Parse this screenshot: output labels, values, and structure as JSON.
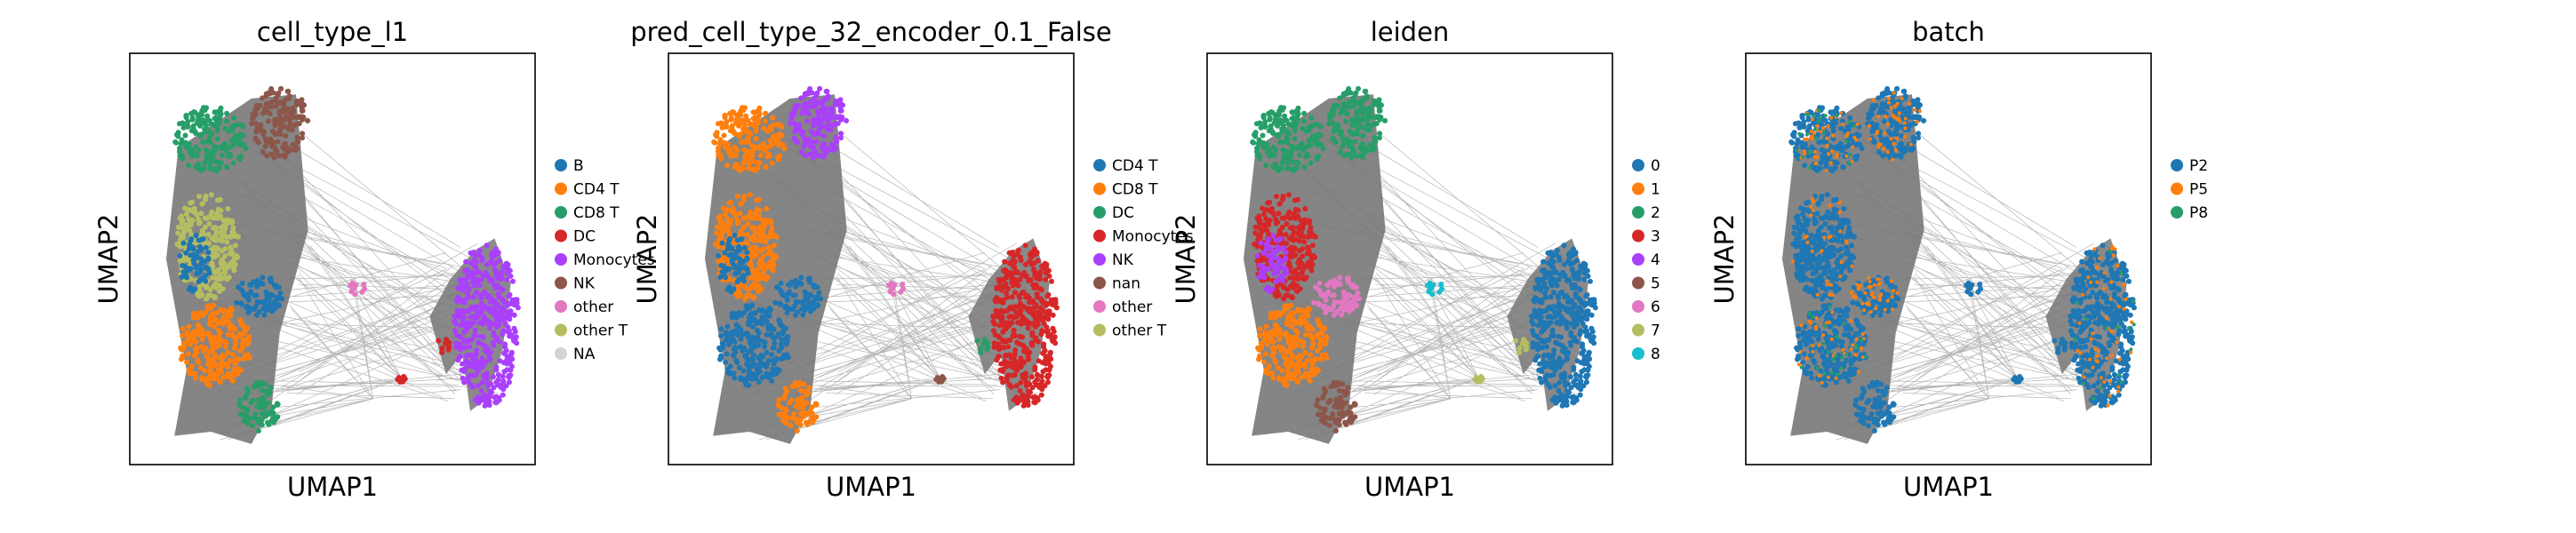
{
  "figure": {
    "panels": [
      {
        "title": "cell_type_l1",
        "xlabel": "UMAP1",
        "ylabel": "UMAP2",
        "legend": [
          "B",
          "CD4 T",
          "CD8 T",
          "DC",
          "Monocytes",
          "NK",
          "other",
          "other T",
          "NA"
        ]
      },
      {
        "title": "pred_cell_type_32_encoder_0.1_False",
        "xlabel": "UMAP1",
        "ylabel": "UMAP2",
        "legend": [
          "CD4 T",
          "CD8 T",
          "DC",
          "Monocytes",
          "NK",
          "nan",
          "other",
          "other T"
        ]
      },
      {
        "title": "leiden",
        "xlabel": "UMAP1",
        "ylabel": "UMAP2",
        "legend": [
          "0",
          "1",
          "2",
          "3",
          "4",
          "5",
          "6",
          "7",
          "8"
        ]
      },
      {
        "title": "batch",
        "xlabel": "UMAP1",
        "ylabel": "UMAP2",
        "legend": [
          "P2",
          "P5",
          "P8"
        ]
      }
    ]
  },
  "chart_data": [
    {
      "type": "scatter",
      "title": "cell_type_l1",
      "xlabel": "UMAP1",
      "ylabel": "UMAP2",
      "grid": false,
      "legend_position": "right",
      "series": [
        {
          "name": "B",
          "color": "#1f77b4"
        },
        {
          "name": "CD4 T",
          "color": "#ff7f0e"
        },
        {
          "name": "CD8 T",
          "color": "#279e68"
        },
        {
          "name": "DC",
          "color": "#d62728"
        },
        {
          "name": "Monocytes",
          "color": "#aa40fc"
        },
        {
          "name": "NK",
          "color": "#8c564b"
        },
        {
          "name": "other",
          "color": "#e377c2"
        },
        {
          "name": "other T",
          "color": "#b5bd61"
        },
        {
          "name": "NA",
          "color": "#d3d3d3"
        }
      ]
    },
    {
      "type": "scatter",
      "title": "pred_cell_type_32_encoder_0.1_False",
      "xlabel": "UMAP1",
      "ylabel": "UMAP2",
      "grid": false,
      "legend_position": "right",
      "series": [
        {
          "name": "CD4 T",
          "color": "#1f77b4"
        },
        {
          "name": "CD8 T",
          "color": "#ff7f0e"
        },
        {
          "name": "DC",
          "color": "#279e68"
        },
        {
          "name": "Monocytes",
          "color": "#d62728"
        },
        {
          "name": "NK",
          "color": "#aa40fc"
        },
        {
          "name": "nan",
          "color": "#8c564b"
        },
        {
          "name": "other",
          "color": "#e377c2"
        },
        {
          "name": "other T",
          "color": "#b5bd61"
        }
      ]
    },
    {
      "type": "scatter",
      "title": "leiden",
      "xlabel": "UMAP1",
      "ylabel": "UMAP2",
      "grid": false,
      "legend_position": "right",
      "series": [
        {
          "name": "0",
          "color": "#1f77b4"
        },
        {
          "name": "1",
          "color": "#ff7f0e"
        },
        {
          "name": "2",
          "color": "#279e68"
        },
        {
          "name": "3",
          "color": "#d62728"
        },
        {
          "name": "4",
          "color": "#aa40fc"
        },
        {
          "name": "5",
          "color": "#8c564b"
        },
        {
          "name": "6",
          "color": "#e377c2"
        },
        {
          "name": "7",
          "color": "#b5bd61"
        },
        {
          "name": "8",
          "color": "#17becf"
        }
      ]
    },
    {
      "type": "scatter",
      "title": "batch",
      "xlabel": "UMAP1",
      "ylabel": "UMAP2",
      "grid": false,
      "legend_position": "right",
      "series": [
        {
          "name": "P2",
          "color": "#1f77b4"
        },
        {
          "name": "P5",
          "color": "#ff7f0e"
        },
        {
          "name": "P8",
          "color": "#279e68"
        }
      ]
    }
  ]
}
